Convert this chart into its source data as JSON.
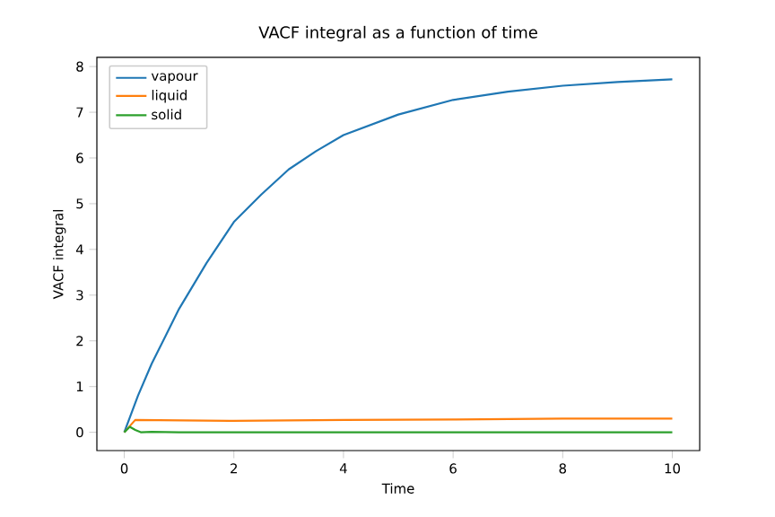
{
  "chart_data": {
    "type": "line",
    "title": "VACF integral as a function of time",
    "xlabel": "Time",
    "ylabel": "VACF integral",
    "xlim": [
      -0.5,
      10.5
    ],
    "ylim": [
      -0.4,
      8.2
    ],
    "xticks": [
      0,
      2,
      4,
      6,
      8,
      10
    ],
    "yticks": [
      0,
      1,
      2,
      3,
      4,
      5,
      6,
      7,
      8
    ],
    "legend": "top left",
    "grid": false,
    "series": [
      {
        "name": "vapour",
        "color": "#1f77b4",
        "x": [
          0,
          0.25,
          0.5,
          0.75,
          1,
          1.5,
          2,
          2.5,
          3,
          3.5,
          4,
          5,
          6,
          7,
          8,
          9,
          10
        ],
        "values": [
          0,
          0.8,
          1.5,
          2.1,
          2.7,
          3.7,
          4.6,
          5.2,
          5.75,
          6.15,
          6.5,
          6.95,
          7.27,
          7.45,
          7.58,
          7.66,
          7.72
        ]
      },
      {
        "name": "liquid",
        "color": "#ff7f0e",
        "x": [
          0,
          0.2,
          2,
          4,
          6,
          8,
          10
        ],
        "values": [
          0,
          0.27,
          0.25,
          0.27,
          0.28,
          0.3,
          0.3
        ]
      },
      {
        "name": "solid",
        "color": "#2ca02c",
        "x": [
          0,
          0.1,
          0.2,
          0.3,
          0.5,
          1,
          10
        ],
        "values": [
          0,
          0.12,
          0.05,
          0,
          0.01,
          0,
          0
        ]
      }
    ]
  }
}
